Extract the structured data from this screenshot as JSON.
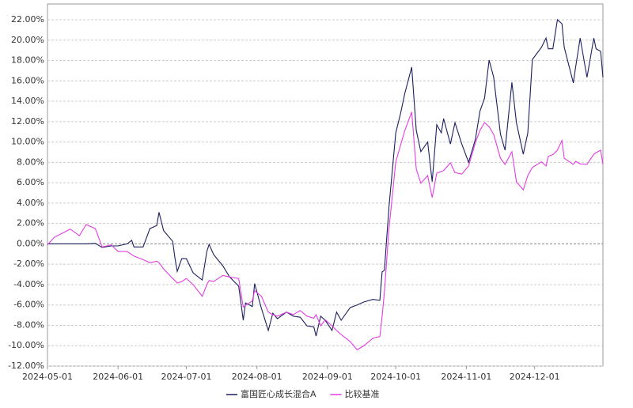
{
  "chart_data": {
    "type": "line",
    "x": [
      "2024-05-01",
      "2024-05-04",
      "2024-05-08",
      "2024-05-11",
      "2024-05-15",
      "2024-05-18",
      "2024-05-22",
      "2024-05-25",
      "2024-05-29",
      "2024-06-01",
      "2024-06-05",
      "2024-06-07",
      "2024-06-08",
      "2024-06-12",
      "2024-06-15",
      "2024-06-18",
      "2024-06-19",
      "2024-06-21",
      "2024-06-25",
      "2024-06-26",
      "2024-06-27",
      "2024-06-29",
      "2024-07-01",
      "2024-07-04",
      "2024-07-08",
      "2024-07-10",
      "2024-07-11",
      "2024-07-13",
      "2024-07-17",
      "2024-07-20",
      "2024-07-24",
      "2024-07-26",
      "2024-07-27",
      "2024-07-30",
      "2024-07-31",
      "2024-08-03",
      "2024-08-06",
      "2024-08-08",
      "2024-08-10",
      "2024-08-14",
      "2024-08-17",
      "2024-08-20",
      "2024-08-23",
      "2024-08-26",
      "2024-08-27",
      "2024-08-29",
      "2024-08-31",
      "2024-09-03",
      "2024-09-05",
      "2024-09-07",
      "2024-09-11",
      "2024-09-14",
      "2024-09-17",
      "2024-09-21",
      "2024-09-24",
      "2024-09-25",
      "2024-09-26",
      "2024-09-28",
      "2024-10-01",
      "2024-10-03",
      "2024-10-05",
      "2024-10-08",
      "2024-10-10",
      "2024-10-12",
      "2024-10-15",
      "2024-10-17",
      "2024-10-19",
      "2024-10-21",
      "2024-10-22",
      "2024-10-25",
      "2024-10-27",
      "2024-10-30",
      "2024-11-02",
      "2024-11-05",
      "2024-11-07",
      "2024-11-09",
      "2024-11-11",
      "2024-11-13",
      "2024-11-16",
      "2024-11-18",
      "2024-11-21",
      "2024-11-23",
      "2024-11-26",
      "2024-11-28",
      "2024-11-30",
      "2024-12-04",
      "2024-12-06",
      "2024-12-07",
      "2024-12-09",
      "2024-12-11",
      "2024-12-13",
      "2024-12-14",
      "2024-12-18",
      "2024-12-19",
      "2024-12-21",
      "2024-12-24",
      "2024-12-27",
      "2024-12-28",
      "2024-12-30",
      "2024-12-31"
    ],
    "series": [
      {
        "name": "富国匠心成长混合A",
        "color": "#1b1f5e",
        "values": [
          0,
          0,
          0,
          0,
          0,
          0,
          0.05,
          -0.35,
          -0.2,
          -0.2,
          0,
          0.35,
          -0.3,
          -0.3,
          1.5,
          1.8,
          3.1,
          1.3,
          0.25,
          -1.4,
          -2.7,
          -1.45,
          -1.45,
          -2.85,
          -3.55,
          -0.75,
          -0.05,
          -1.05,
          -2.15,
          -3.25,
          -4.15,
          -7.5,
          -5.8,
          -6.15,
          -3.9,
          -6.35,
          -8.5,
          -6.8,
          -7.35,
          -6.7,
          -7.1,
          -7.2,
          -8.05,
          -8.15,
          -9.05,
          -7.1,
          -7.5,
          -8.5,
          -6.7,
          -7.5,
          -6.25,
          -6,
          -5.7,
          -5.45,
          -5.55,
          -2.75,
          -2.6,
          3.6,
          10.9,
          12.7,
          14.8,
          17.35,
          11.15,
          9.05,
          10,
          6.1,
          11.7,
          10.9,
          12.3,
          9.8,
          11.9,
          9.8,
          8,
          10.3,
          13.05,
          14.3,
          18.05,
          16.35,
          10.75,
          9.2,
          15.85,
          11.9,
          8.8,
          10.9,
          18.1,
          19.3,
          20.2,
          19.15,
          19.15,
          22,
          21.6,
          19.3,
          15.8,
          17.35,
          20.2,
          16.35,
          20.2,
          19.15,
          18.9,
          16.35
        ]
      },
      {
        "name": "比较基准",
        "color": "#e23ee2",
        "values": [
          -0.1,
          0.65,
          1.1,
          1.45,
          0.8,
          1.9,
          1.5,
          -0.3,
          -0.1,
          -0.75,
          -0.75,
          -1.05,
          -1.2,
          -1.55,
          -1.85,
          -1.7,
          -1.85,
          -2.45,
          -3.4,
          -3.6,
          -3.85,
          -3.7,
          -3.4,
          -4,
          -5.15,
          -4,
          -3.6,
          -3.7,
          -3.1,
          -3.25,
          -3.4,
          -6.2,
          -6.05,
          -5.6,
          -4.6,
          -5.15,
          -6.7,
          -6.95,
          -7.1,
          -6.7,
          -6.95,
          -6.55,
          -7.1,
          -7.3,
          -6.95,
          -8.05,
          -7.45,
          -8.05,
          -8.5,
          -8.9,
          -9.6,
          -10.4,
          -10,
          -9.25,
          -9.1,
          -7.1,
          -4.75,
          1.45,
          8.05,
          9.6,
          11.15,
          12.95,
          7.35,
          5.95,
          6.7,
          4.55,
          6.95,
          7.1,
          7.2,
          7.95,
          7,
          6.85,
          7.65,
          9.95,
          11.15,
          11.9,
          11.5,
          10.75,
          8.4,
          7.8,
          9.05,
          6.1,
          5.3,
          6.7,
          7.5,
          8.05,
          7.65,
          8.6,
          8.75,
          9.2,
          10.15,
          8.4,
          7.8,
          8.1,
          7.85,
          7.8,
          8.8,
          8.95,
          9.2,
          7.8
        ]
      }
    ],
    "xlim": [
      "2024-05-01",
      "2024-12-31"
    ],
    "xticks": [
      "2024-05-01",
      "2024-06-01",
      "2024-07-01",
      "2024-08-01",
      "2024-09-01",
      "2024-10-01",
      "2024-11-01",
      "2024-12-01"
    ],
    "ylim": [
      -12,
      22
    ],
    "yticks": [
      {
        "value": -12,
        "label": "-12.00%"
      },
      {
        "value": -10,
        "label": "-10.00%"
      },
      {
        "value": -8,
        "label": "-8.00%"
      },
      {
        "value": -6,
        "label": "-6.00%"
      },
      {
        "value": -4,
        "label": "-4.00%"
      },
      {
        "value": -2,
        "label": "-2.00%"
      },
      {
        "value": 0,
        "label": "0.00%"
      },
      {
        "value": 2,
        "label": "2.00%"
      },
      {
        "value": 4,
        "label": "4.00%"
      },
      {
        "value": 6,
        "label": "6.00%"
      },
      {
        "value": 8,
        "label": "8.00%"
      },
      {
        "value": 10,
        "label": "10.00%"
      },
      {
        "value": 12,
        "label": "12.00%"
      },
      {
        "value": 14,
        "label": "14.00%"
      },
      {
        "value": 16,
        "label": "16.00%"
      },
      {
        "value": 18,
        "label": "18.00%"
      },
      {
        "value": 20,
        "label": "20.00%"
      },
      {
        "value": 22,
        "label": "22.00%"
      }
    ],
    "grid": true,
    "legend": "bottom"
  }
}
